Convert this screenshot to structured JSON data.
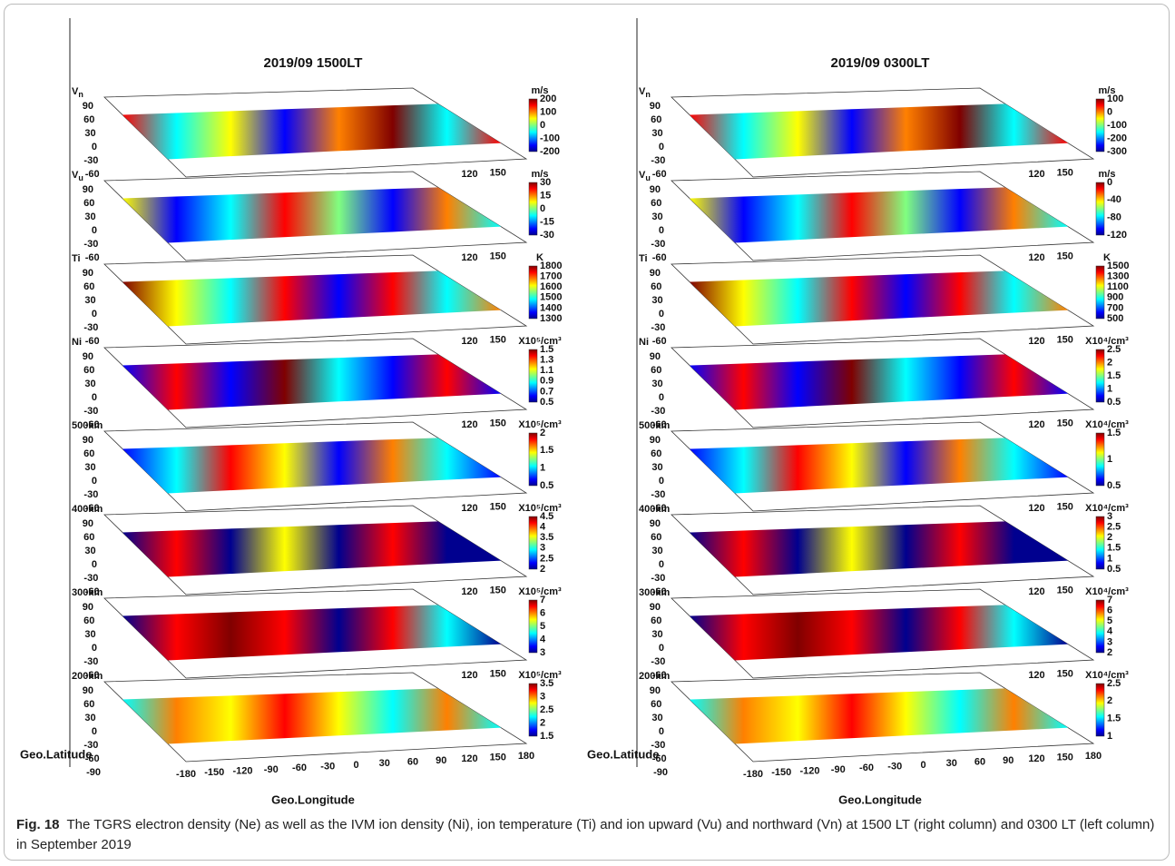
{
  "panels": [
    {
      "title": "2019/09  1500LT",
      "y_label": "Geo.Latitude",
      "x_label": "Geo.Longitude",
      "layers": [
        {
          "label": "V",
          "label_sub": "n",
          "lat_ticks": [
            90,
            60,
            30,
            0,
            -30,
            -60
          ],
          "lon_ticks": [
            120,
            150
          ],
          "unit": "m/s",
          "cbar_ticks": [
            200,
            100,
            0,
            -100,
            -200
          ]
        },
        {
          "label": "V",
          "label_sub": "u",
          "lat_ticks": [
            90,
            60,
            30,
            0,
            -30,
            -60
          ],
          "lon_ticks": [
            120,
            150
          ],
          "unit": "m/s",
          "cbar_ticks": [
            30,
            15,
            0,
            -15,
            -30
          ]
        },
        {
          "label": "Ti",
          "lat_ticks": [
            90,
            60,
            30,
            0,
            -30,
            -60
          ],
          "lon_ticks": [
            120,
            150
          ],
          "unit": "K",
          "cbar_ticks": [
            1800,
            1700,
            1600,
            1500,
            1400,
            1300
          ]
        },
        {
          "label": "Ni",
          "lat_ticks": [
            90,
            60,
            30,
            0,
            -30,
            -60
          ],
          "lon_ticks": [
            120,
            150
          ],
          "unit": "X10⁵/cm³",
          "cbar_ticks": [
            1.5,
            1.3,
            1.1,
            0.9,
            0.7,
            0.5
          ]
        },
        {
          "label": "500km",
          "lat_ticks": [
            90,
            60,
            30,
            0,
            -30,
            -60
          ],
          "lon_ticks": [
            120,
            150
          ],
          "unit": "X10⁵/cm³",
          "cbar_ticks": [
            2,
            1.5,
            1,
            0.5
          ]
        },
        {
          "label": "400km",
          "lat_ticks": [
            90,
            60,
            30,
            0,
            -30,
            -60
          ],
          "lon_ticks": [
            120,
            150
          ],
          "unit": "X10⁵/cm³",
          "cbar_ticks": [
            4.5,
            4,
            3.5,
            3,
            2.5,
            2
          ]
        },
        {
          "label": "300km",
          "lat_ticks": [
            90,
            60,
            30,
            0,
            -30,
            -60
          ],
          "lon_ticks": [
            120,
            150
          ],
          "unit": "X10⁵/cm³",
          "cbar_ticks": [
            7,
            6,
            5,
            4,
            3
          ]
        },
        {
          "label": "200km",
          "lat_ticks": [
            90,
            60,
            30,
            0,
            -30,
            -60,
            -90
          ],
          "lon_ticks": [
            -180,
            -150,
            -120,
            -90,
            -60,
            -30,
            0,
            30,
            60,
            90,
            120,
            150,
            180
          ],
          "unit": "X10⁵/cm³",
          "cbar_ticks": [
            3.5,
            3,
            2.5,
            2,
            1.5
          ]
        }
      ]
    },
    {
      "title": "2019/09  0300LT",
      "y_label": "Geo.Latitude",
      "x_label": "Geo.Longitude",
      "layers": [
        {
          "label": "V",
          "label_sub": "n",
          "lat_ticks": [
            90,
            60,
            30,
            0,
            -30,
            -60
          ],
          "lon_ticks": [
            120,
            150
          ],
          "unit": "m/s",
          "cbar_ticks": [
            100,
            0,
            -100,
            -200,
            -300
          ]
        },
        {
          "label": "V",
          "label_sub": "u",
          "lat_ticks": [
            90,
            60,
            30,
            0,
            -30,
            -60
          ],
          "lon_ticks": [
            120,
            150
          ],
          "unit": "m/s",
          "cbar_ticks": [
            0,
            -40,
            -80,
            -120
          ]
        },
        {
          "label": "Ti",
          "lat_ticks": [
            90,
            60,
            30,
            0,
            -30,
            -60
          ],
          "lon_ticks": [
            120,
            150
          ],
          "unit": "K",
          "cbar_ticks": [
            1500,
            1300,
            1100,
            900,
            700,
            500
          ]
        },
        {
          "label": "Ni",
          "lat_ticks": [
            90,
            60,
            30,
            0,
            -30,
            -60
          ],
          "lon_ticks": [
            120,
            150
          ],
          "unit": "X10⁴/cm³",
          "cbar_ticks": [
            2.5,
            2,
            1.5,
            1,
            0.5
          ]
        },
        {
          "label": "500km",
          "lat_ticks": [
            90,
            60,
            30,
            0,
            -30,
            -60
          ],
          "lon_ticks": [
            120,
            150
          ],
          "unit": "X10⁴/cm³",
          "cbar_ticks": [
            1.5,
            1,
            0.5
          ]
        },
        {
          "label": "400km",
          "lat_ticks": [
            90,
            60,
            30,
            0,
            -30,
            -60
          ],
          "lon_ticks": [
            120,
            150
          ],
          "unit": "X10⁴/cm³",
          "cbar_ticks": [
            3,
            2.5,
            2,
            1.5,
            1,
            0.5
          ]
        },
        {
          "label": "300km",
          "lat_ticks": [
            90,
            60,
            30,
            0,
            -30,
            -60
          ],
          "lon_ticks": [
            120,
            150
          ],
          "unit": "X10⁴/cm³",
          "cbar_ticks": [
            7,
            6,
            5,
            4,
            3,
            2
          ]
        },
        {
          "label": "200km",
          "lat_ticks": [
            90,
            60,
            30,
            0,
            -30,
            -60,
            -90
          ],
          "lon_ticks": [
            -180,
            -150,
            -120,
            -90,
            -60,
            -30,
            0,
            30,
            60,
            90,
            120,
            150,
            180
          ],
          "unit": "X10⁴/cm³",
          "cbar_ticks": [
            2.5,
            2,
            1.5,
            1
          ]
        }
      ]
    }
  ],
  "caption": {
    "label": "Fig. 18",
    "text": "The TGRS electron density (Ne) as well as the IVM ion density (Ni), ion temperature (Ti) and ion upward (Vu) and northward (Vn) at 1500 LT (right column) and 0300 LT (left column) in September 2019"
  }
}
